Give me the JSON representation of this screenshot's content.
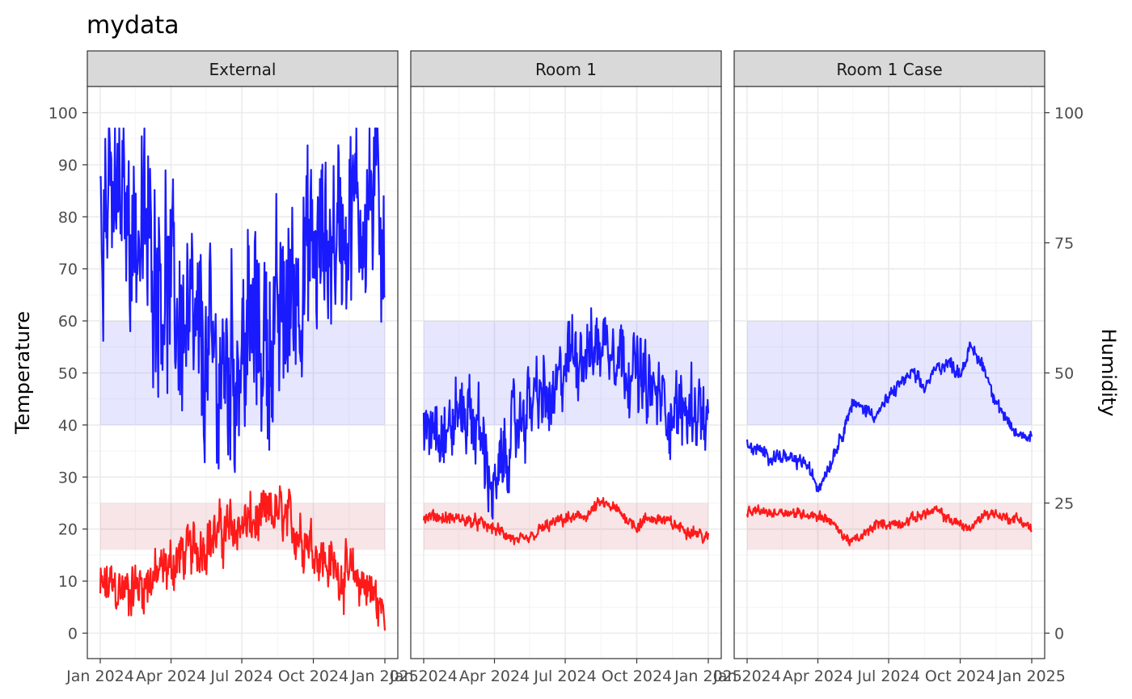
{
  "chart_data": {
    "type": "line",
    "title": "mydata",
    "ylabel": "Temperature",
    "ylabel_right": "Humidity",
    "xlabel": "",
    "x_ticks": [
      "Jan 2024",
      "Apr 2024",
      "Jul 2024",
      "Oct 2024",
      "Jan 2025"
    ],
    "x_range": [
      "2024-01-01",
      "2025-01-01"
    ],
    "y_ticks_left": [
      0,
      10,
      20,
      30,
      40,
      50,
      60,
      70,
      80,
      90,
      100
    ],
    "y_ticks_right": [
      0,
      25,
      50,
      75,
      100
    ],
    "ylim": [
      -2,
      105
    ],
    "grid": true,
    "legend": "none",
    "panels": [
      {
        "name": "External",
        "temperature_band": [
          16,
          25
        ],
        "humidity_band": [
          40,
          60
        ],
        "series": [
          {
            "color": "#ff1a1a",
            "points": [
              [
                "2024-01-01",
                8
              ],
              [
                "2024-01-15",
                9
              ],
              [
                "2024-02-01",
                8
              ],
              [
                "2024-02-15",
                9
              ],
              [
                "2024-03-01",
                10
              ],
              [
                "2024-03-15",
                11
              ],
              [
                "2024-04-01",
                13
              ],
              [
                "2024-04-15",
                15
              ],
              [
                "2024-05-01",
                16
              ],
              [
                "2024-05-15",
                18
              ],
              [
                "2024-06-01",
                19
              ],
              [
                "2024-06-15",
                20
              ],
              [
                "2024-07-01",
                21
              ],
              [
                "2024-07-15",
                21
              ],
              [
                "2024-08-01",
                22
              ],
              [
                "2024-08-15",
                23
              ],
              [
                "2024-09-01",
                21
              ],
              [
                "2024-09-15",
                19
              ],
              [
                "2024-10-01",
                17
              ],
              [
                "2024-10-15",
                14
              ],
              [
                "2024-11-01",
                12
              ],
              [
                "2024-11-15",
                11
              ],
              [
                "2024-12-01",
                10
              ],
              [
                "2024-12-15",
                8
              ],
              [
                "2025-01-01",
                3
              ]
            ],
            "spread": 7
          },
          {
            "color": "#1a1aff",
            "points": [
              [
                "2024-01-01",
                85
              ],
              [
                "2024-01-15",
                83
              ],
              [
                "2024-02-01",
                82
              ],
              [
                "2024-02-15",
                78
              ],
              [
                "2024-03-01",
                75
              ],
              [
                "2024-03-15",
                72
              ],
              [
                "2024-04-01",
                65
              ],
              [
                "2024-04-15",
                60
              ],
              [
                "2024-05-01",
                55
              ],
              [
                "2024-05-15",
                52
              ],
              [
                "2024-06-01",
                50
              ],
              [
                "2024-06-15",
                52
              ],
              [
                "2024-07-01",
                55
              ],
              [
                "2024-07-15",
                58
              ],
              [
                "2024-08-01",
                56
              ],
              [
                "2024-08-15",
                58
              ],
              [
                "2024-09-01",
                65
              ],
              [
                "2024-09-15",
                70
              ],
              [
                "2024-10-01",
                72
              ],
              [
                "2024-10-15",
                75
              ],
              [
                "2024-11-01",
                78
              ],
              [
                "2024-11-15",
                80
              ],
              [
                "2024-12-01",
                82
              ],
              [
                "2024-12-15",
                84
              ],
              [
                "2025-01-01",
                80
              ]
            ],
            "spread": 26
          }
        ]
      },
      {
        "name": "Room 1",
        "temperature_band": [
          16,
          25
        ],
        "humidity_band": [
          40,
          60
        ],
        "series": [
          {
            "color": "#ff1a1a",
            "points": [
              [
                "2024-01-01",
                22
              ],
              [
                "2024-01-15",
                22.5
              ],
              [
                "2024-02-01",
                22
              ],
              [
                "2024-02-15",
                22
              ],
              [
                "2024-03-01",
                21.5
              ],
              [
                "2024-03-15",
                21
              ],
              [
                "2024-04-01",
                20
              ],
              [
                "2024-04-15",
                19
              ],
              [
                "2024-05-01",
                17.5
              ],
              [
                "2024-05-15",
                18
              ],
              [
                "2024-06-01",
                20
              ],
              [
                "2024-06-15",
                21
              ],
              [
                "2024-07-01",
                22
              ],
              [
                "2024-07-15",
                22
              ],
              [
                "2024-08-01",
                23
              ],
              [
                "2024-08-15",
                25
              ],
              [
                "2024-09-01",
                24
              ],
              [
                "2024-09-15",
                22.5
              ],
              [
                "2024-10-01",
                20.5
              ],
              [
                "2024-10-15",
                22
              ],
              [
                "2024-11-01",
                22
              ],
              [
                "2024-11-15",
                21
              ],
              [
                "2024-12-01",
                20
              ],
              [
                "2024-12-15",
                19.5
              ],
              [
                "2025-01-01",
                18
              ]
            ],
            "spread": 1.6
          },
          {
            "color": "#1a1aff",
            "points": [
              [
                "2024-01-01",
                40
              ],
              [
                "2024-01-15",
                42
              ],
              [
                "2024-02-01",
                38
              ],
              [
                "2024-02-15",
                43
              ],
              [
                "2024-03-01",
                42
              ],
              [
                "2024-03-15",
                38
              ],
              [
                "2024-04-01",
                26
              ],
              [
                "2024-04-15",
                35
              ],
              [
                "2024-05-01",
                40
              ],
              [
                "2024-05-15",
                44
              ],
              [
                "2024-06-01",
                46
              ],
              [
                "2024-06-15",
                43
              ],
              [
                "2024-07-01",
                52
              ],
              [
                "2024-07-15",
                55
              ],
              [
                "2024-08-01",
                54
              ],
              [
                "2024-08-15",
                56
              ],
              [
                "2024-09-01",
                56
              ],
              [
                "2024-09-15",
                53
              ],
              [
                "2024-10-01",
                50
              ],
              [
                "2024-10-15",
                47
              ],
              [
                "2024-11-01",
                45
              ],
              [
                "2024-11-15",
                42
              ],
              [
                "2024-12-01",
                43
              ],
              [
                "2024-12-15",
                44
              ],
              [
                "2025-01-01",
                40
              ]
            ],
            "spread": 10
          }
        ]
      },
      {
        "name": "Room 1 Case",
        "temperature_band": [
          16,
          25
        ],
        "humidity_band": [
          40,
          60
        ],
        "series": [
          {
            "color": "#ff1a1a",
            "points": [
              [
                "2024-01-01",
                23
              ],
              [
                "2024-01-15",
                23.5
              ],
              [
                "2024-02-01",
                23
              ],
              [
                "2024-02-15",
                23.5
              ],
              [
                "2024-03-01",
                23
              ],
              [
                "2024-03-15",
                23
              ],
              [
                "2024-04-01",
                22.5
              ],
              [
                "2024-04-15",
                22
              ],
              [
                "2024-05-01",
                19
              ],
              [
                "2024-05-15",
                17.5
              ],
              [
                "2024-06-01",
                19
              ],
              [
                "2024-06-15",
                21
              ],
              [
                "2024-07-01",
                21
              ],
              [
                "2024-07-15",
                21
              ],
              [
                "2024-08-01",
                22
              ],
              [
                "2024-08-15",
                23
              ],
              [
                "2024-09-01",
                23.5
              ],
              [
                "2024-09-15",
                22
              ],
              [
                "2024-10-01",
                21
              ],
              [
                "2024-10-15",
                20
              ],
              [
                "2024-11-01",
                23
              ],
              [
                "2024-11-15",
                23
              ],
              [
                "2024-12-01",
                22
              ],
              [
                "2024-12-15",
                22
              ],
              [
                "2025-01-01",
                20
              ]
            ],
            "spread": 1.3
          },
          {
            "color": "#1a1aff",
            "points": [
              [
                "2024-01-01",
                36
              ],
              [
                "2024-01-15",
                35
              ],
              [
                "2024-02-01",
                34
              ],
              [
                "2024-02-15",
                34
              ],
              [
                "2024-03-01",
                33
              ],
              [
                "2024-03-15",
                33
              ],
              [
                "2024-04-01",
                28
              ],
              [
                "2024-04-15",
                32
              ],
              [
                "2024-05-01",
                38
              ],
              [
                "2024-05-15",
                44
              ],
              [
                "2024-06-01",
                43
              ],
              [
                "2024-06-15",
                42
              ],
              [
                "2024-07-01",
                45
              ],
              [
                "2024-07-15",
                48
              ],
              [
                "2024-08-01",
                50
              ],
              [
                "2024-08-15",
                47
              ],
              [
                "2024-09-01",
                51
              ],
              [
                "2024-09-15",
                52
              ],
              [
                "2024-10-01",
                50
              ],
              [
                "2024-10-15",
                55
              ],
              [
                "2024-11-01",
                51
              ],
              [
                "2024-11-15",
                45
              ],
              [
                "2024-12-01",
                40
              ],
              [
                "2024-12-15",
                38
              ],
              [
                "2025-01-01",
                38
              ]
            ],
            "spread": 1.8
          }
        ]
      }
    ]
  }
}
